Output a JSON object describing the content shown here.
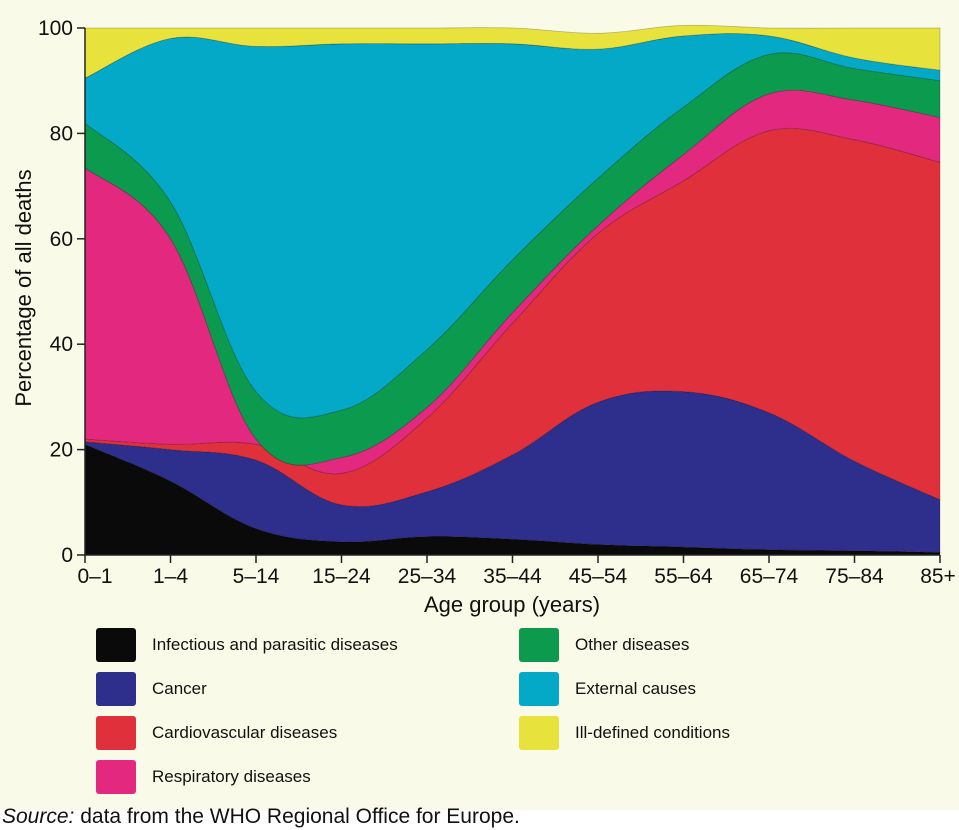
{
  "chart_data": {
    "type": "area",
    "stacked": true,
    "categories": [
      "0–1",
      "1–4",
      "5–14",
      "15–24",
      "25–34",
      "35–44",
      "45–54",
      "55–64",
      "65–74",
      "75–84",
      "85+"
    ],
    "xlabel": "Age group (years)",
    "ylabel": "Percentage of all deaths",
    "ylim": [
      0,
      100
    ],
    "yticks": [
      "0",
      "20",
      "40",
      "60",
      "80",
      "100"
    ],
    "grid": false,
    "legend_position": "below",
    "series": [
      {
        "name": "Infectious and parasitic diseases",
        "color": "#0a0a0a",
        "values": [
          21,
          14,
          5,
          2.5,
          3.5,
          3,
          2,
          1.5,
          1,
          0.8,
          0.5
        ]
      },
      {
        "name": "Cancer",
        "color": "#2e2e8c",
        "values": [
          0.5,
          6,
          13,
          7,
          8.5,
          16,
          27,
          29.5,
          26,
          17,
          10
        ]
      },
      {
        "name": "Cardiovascular diseases",
        "color": "#e0303c",
        "values": [
          0.5,
          1,
          3,
          6,
          14,
          25,
          32,
          40,
          53.5,
          61,
          64
        ]
      },
      {
        "name": "Respiratory diseases",
        "color": "#e3287f",
        "values": [
          51.5,
          39,
          1,
          3,
          2,
          2,
          1.5,
          5,
          7,
          7.5,
          8.5
        ]
      },
      {
        "name": "Other diseases",
        "color": "#0b9a4e",
        "values": [
          8.5,
          7,
          9,
          9,
          11,
          10,
          9,
          9,
          7.5,
          6,
          7
        ]
      },
      {
        "name": "External causes",
        "color": "#03a9c6",
        "values": [
          8.5,
          31,
          65.5,
          69.5,
          58,
          41,
          24.5,
          13.5,
          3.5,
          2,
          2
        ]
      },
      {
        "name": "Ill-defined conditions",
        "color": "#e8e23c",
        "values": [
          9.5,
          2,
          3.5,
          3,
          3,
          3,
          3,
          2,
          1.5,
          5.7,
          8
        ]
      }
    ]
  },
  "source": {
    "lead": "Source:",
    "text": " data from the WHO Regional Office for Europe."
  }
}
